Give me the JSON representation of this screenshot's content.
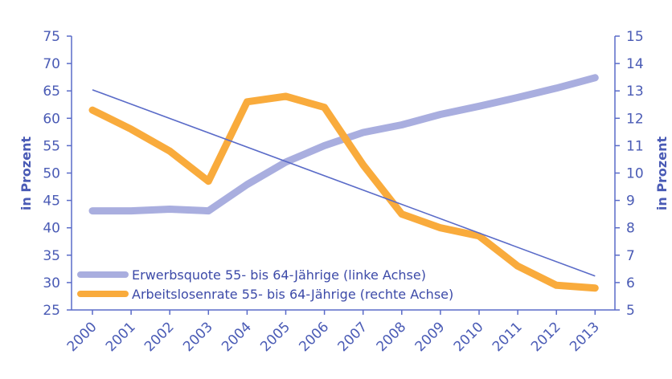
{
  "chart_data": {
    "type": "line",
    "title": "",
    "x": [
      "2000",
      "2001",
      "2002",
      "2003",
      "2004",
      "2005",
      "2006",
      "2007",
      "2008",
      "2009",
      "2010",
      "2011",
      "2012",
      "2013"
    ],
    "left_axis": {
      "label": "in Prozent",
      "min": 25,
      "max": 75,
      "ticks": [
        25,
        30,
        35,
        40,
        45,
        50,
        55,
        60,
        65,
        70,
        75
      ]
    },
    "right_axis": {
      "label": "in Prozent",
      "min": 5,
      "max": 15,
      "ticks": [
        5,
        6,
        7,
        8,
        9,
        10,
        11,
        12,
        13,
        14,
        15
      ]
    },
    "series": [
      {
        "name": "Erwerbsquote 55- bis 64-Jährige (linke Achse)",
        "axis": "left",
        "color": "#a9aedf",
        "values": [
          43.1,
          43.1,
          43.4,
          43.1,
          47.9,
          52.0,
          55.0,
          57.4,
          58.8,
          60.7,
          62.2,
          63.8,
          65.5,
          67.4
        ]
      },
      {
        "name": "Arbeitslosenrate 55- bis 64-Jährige (rechte Achse)",
        "axis": "right",
        "color": "#f9ab3c",
        "values": [
          12.3,
          11.6,
          10.8,
          9.7,
          12.6,
          12.8,
          12.4,
          10.3,
          8.5,
          8.0,
          7.7,
          6.6,
          5.9,
          5.8
        ]
      }
    ],
    "trendline": {
      "axis": "left",
      "color": "#5a6bc8",
      "start": 65.2,
      "end": 31.2
    },
    "legend_position": "bottom-left",
    "grid": false
  },
  "colors": {
    "axis": "#5a6bc8",
    "text": "#4a5bb5"
  }
}
